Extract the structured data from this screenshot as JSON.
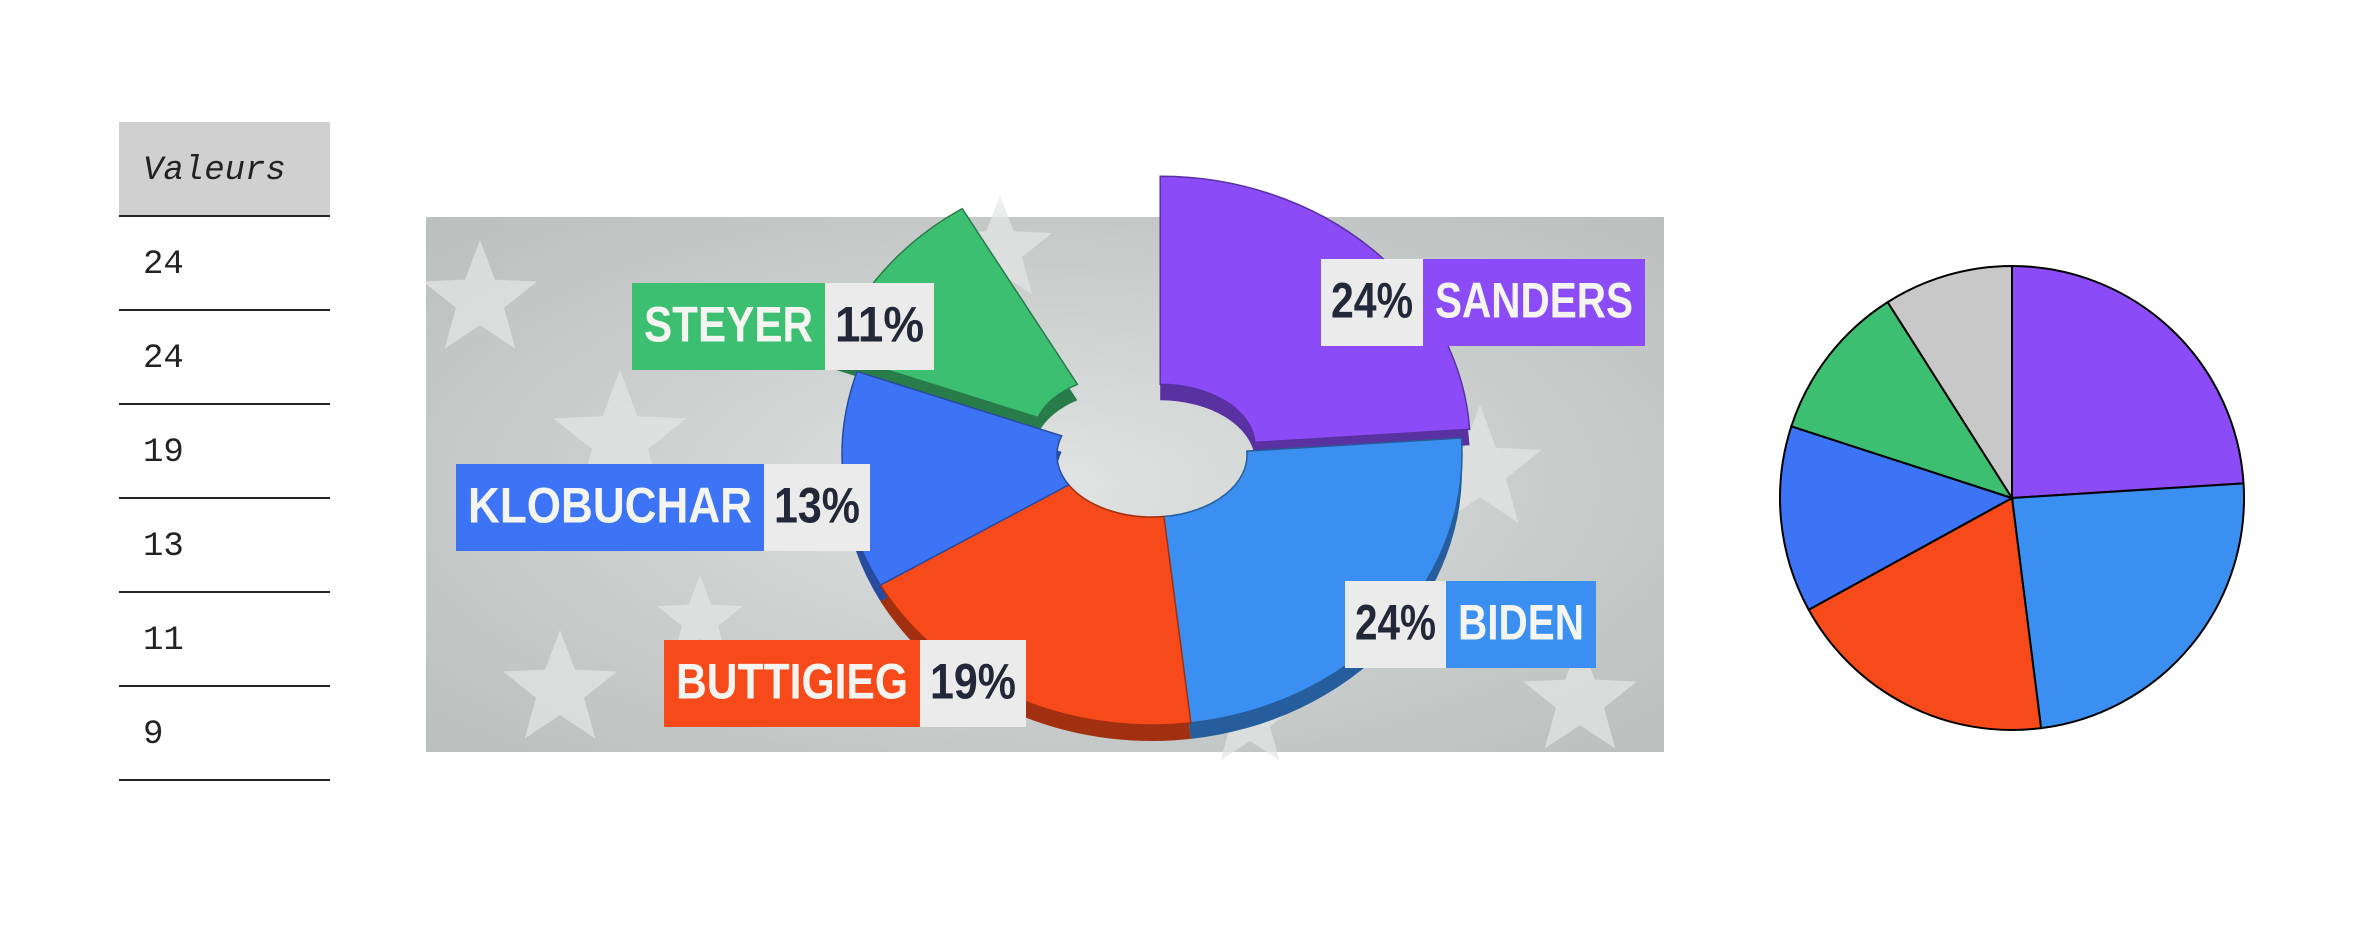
{
  "table": {
    "header": "Valeurs",
    "rows": [
      24,
      24,
      19,
      13,
      11,
      9
    ]
  },
  "chart_data": [
    {
      "type": "donut",
      "categories": [
        "SANDERS",
        "BIDEN",
        "BUTTIGIEG",
        "KLOBUCHAR",
        "STEYER"
      ],
      "values": [
        24,
        24,
        19,
        13,
        11
      ],
      "value_labels": [
        "24%",
        "24%",
        "19%",
        "13%",
        "11%"
      ],
      "colors": [
        "#8b4cf7",
        "#3b8ff0",
        "#f74a1a",
        "#3d74f5",
        "#3dbf72"
      ]
    },
    {
      "type": "pie",
      "values": [
        24,
        24,
        19,
        13,
        11,
        9
      ],
      "colors": [
        "#8b4cf7",
        "#3b8ff0",
        "#f74a1a",
        "#3d74f5",
        "#3dbf72",
        "#c8c8c8"
      ]
    }
  ]
}
